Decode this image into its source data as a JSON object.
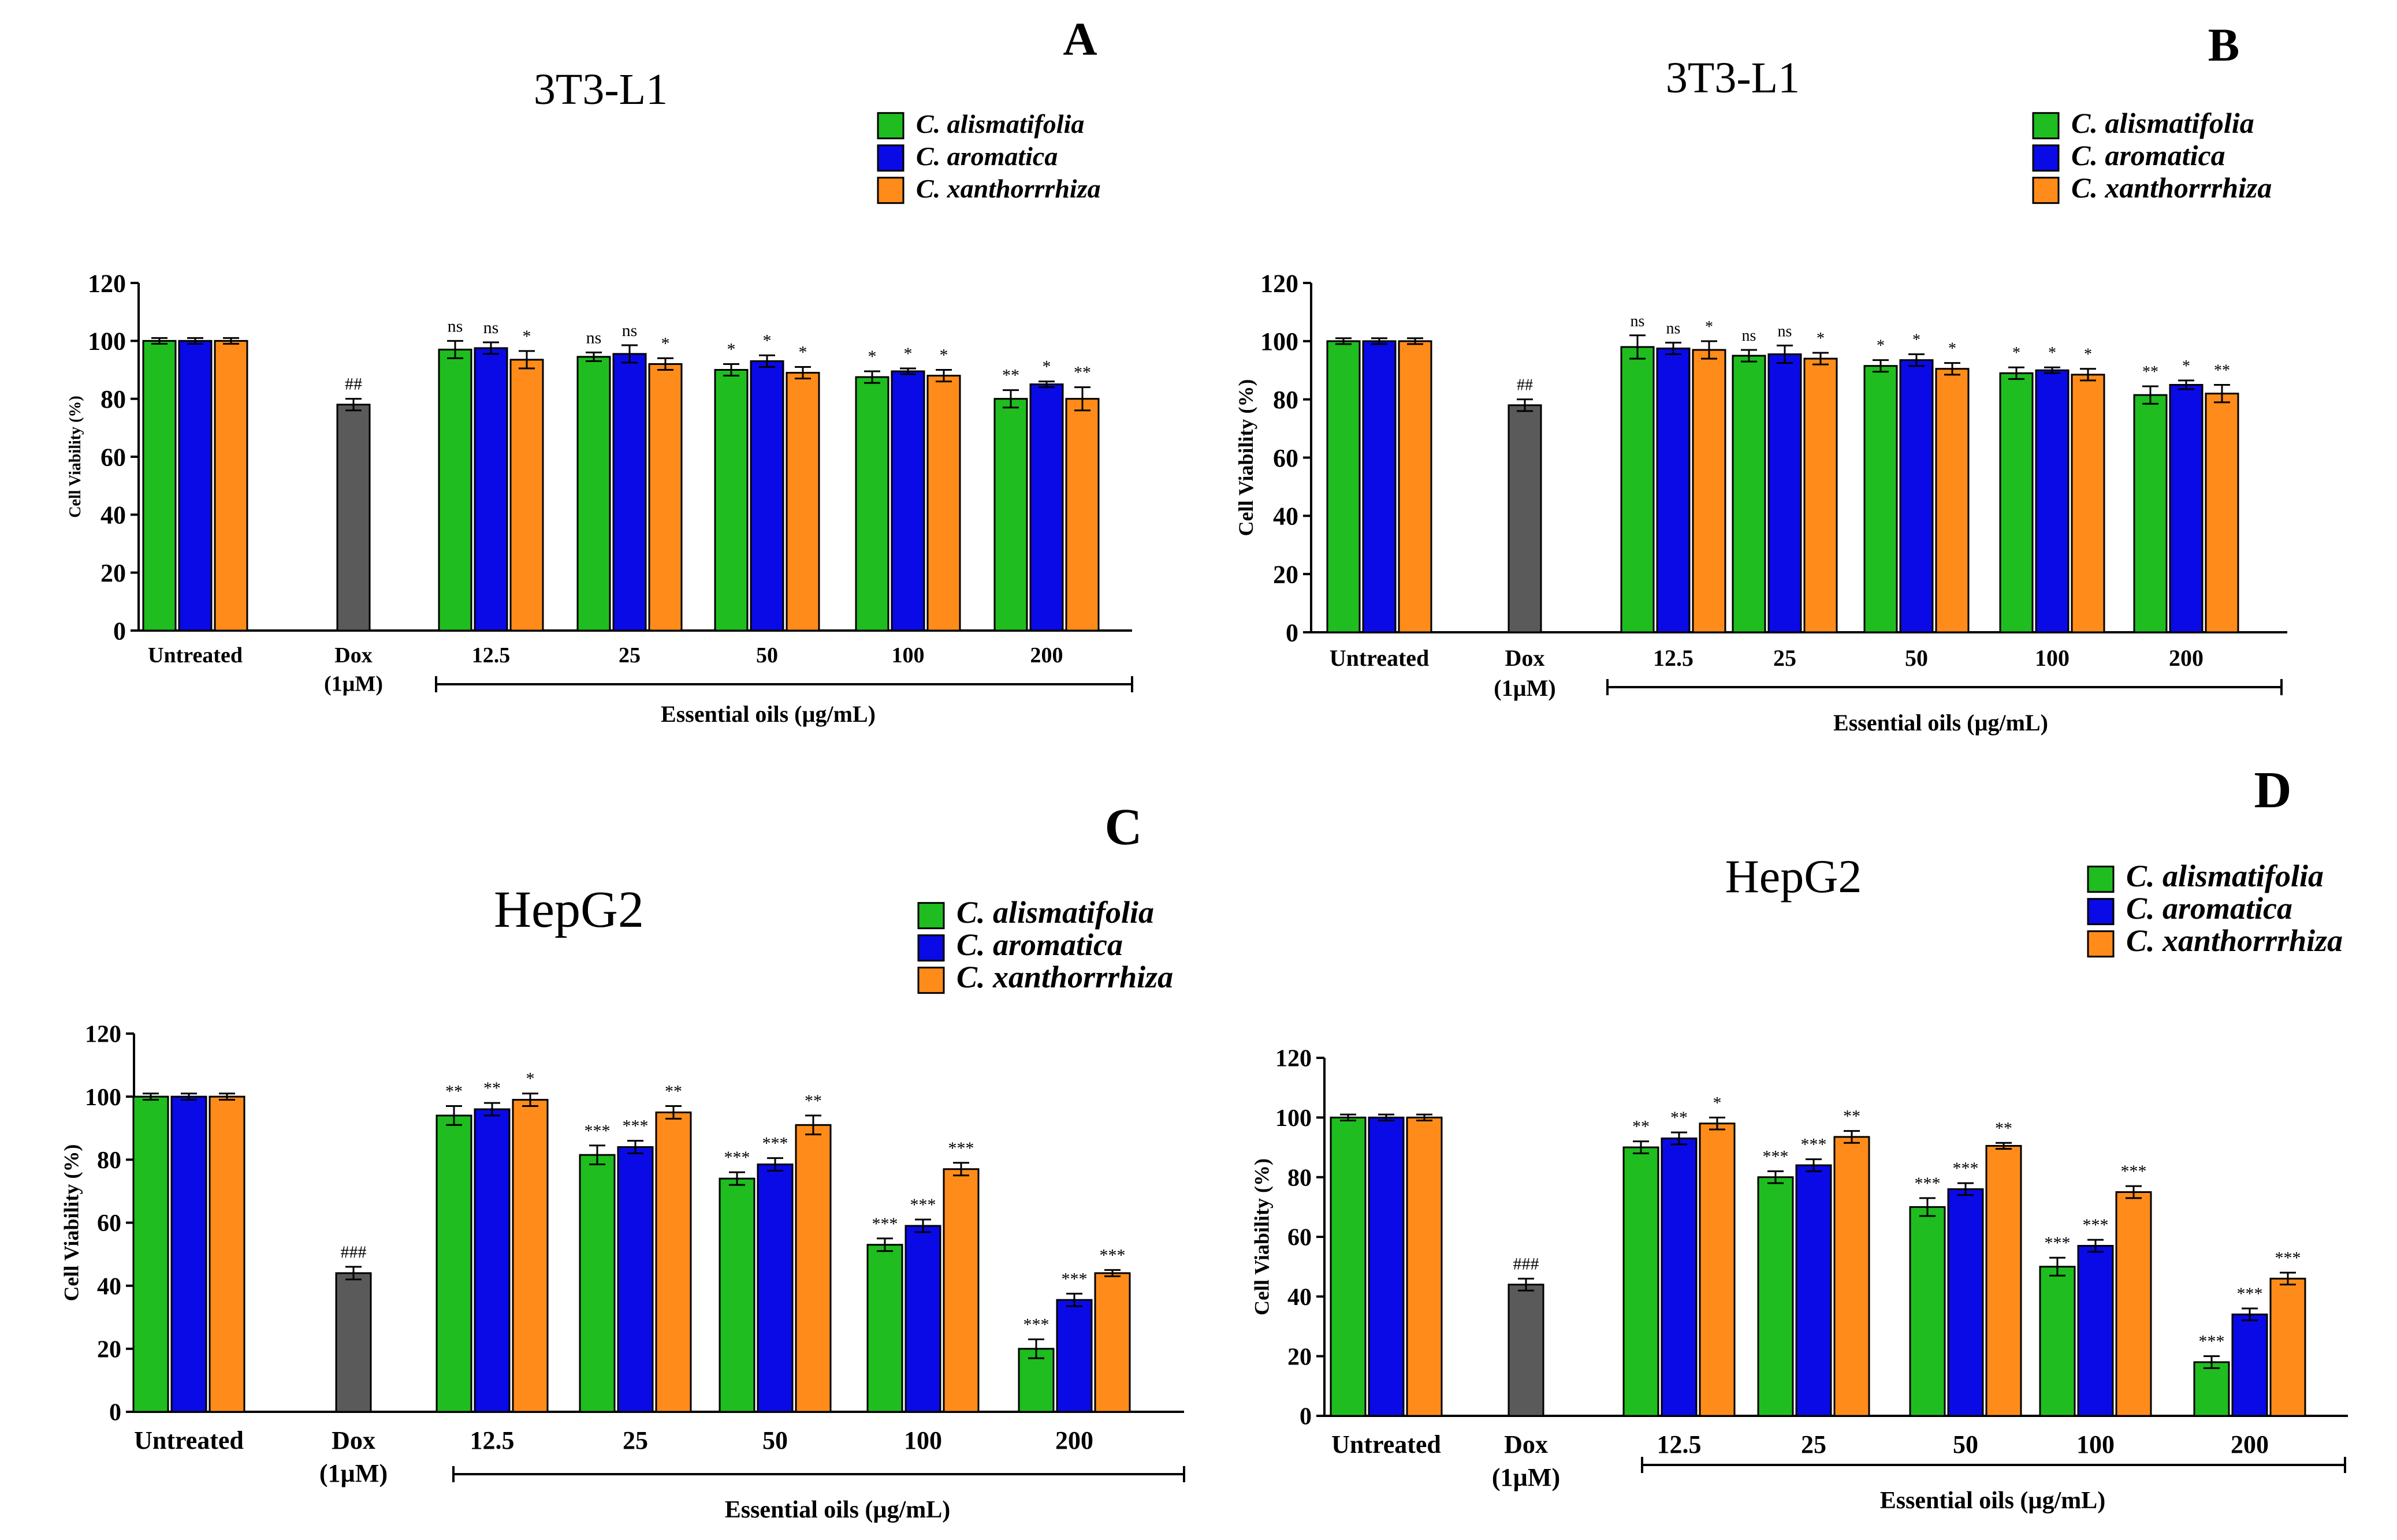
{
  "colors": {
    "series": [
      "#1fbd1f",
      "#0a0ae6",
      "#ff8c1a"
    ],
    "control": "#5a5a5a",
    "axis": "#000000"
  },
  "legend_labels": [
    "C. alismatifolia",
    "C. aromatica",
    "C. xanthorrrhiza"
  ],
  "chart_data": [
    {
      "type": "bar",
      "panel": "A",
      "title": "3T3-L1",
      "ylabel": "Cell Viability (%)",
      "xlabel": "Essential oils (µg/mL)",
      "ylim": [
        0,
        120
      ],
      "yticks": [
        "0",
        "20",
        "40",
        "60",
        "80",
        "100",
        "120"
      ],
      "legend": "top-right",
      "control_groups": [
        {
          "label": "Untreated",
          "values": [
            100,
            100,
            100
          ],
          "errors": [
            1,
            1,
            1
          ],
          "sig": [
            "",
            "",
            ""
          ]
        },
        {
          "label": "Dox",
          "sublabel": "(1µM)",
          "value": 78,
          "error": 2,
          "sig": "##"
        }
      ],
      "categories": [
        "12.5",
        "25",
        "50",
        "100",
        "200"
      ],
      "series": [
        {
          "name": "C. alismatifolia",
          "values": [
            97,
            94.5,
            90,
            87.5,
            80
          ],
          "errors": [
            3,
            1.5,
            2,
            2,
            3
          ],
          "sig": [
            "ns",
            "ns",
            "*",
            "*",
            "**"
          ]
        },
        {
          "name": "C. aromatica",
          "values": [
            97.5,
            95.5,
            93,
            89.5,
            85
          ],
          "errors": [
            2,
            3,
            2,
            1,
            1
          ],
          "sig": [
            "ns",
            "ns",
            "*",
            "*",
            "*"
          ]
        },
        {
          "name": "C. xanthorrrhiza",
          "values": [
            93.5,
            92,
            89,
            88,
            80
          ],
          "errors": [
            3,
            2,
            2,
            2,
            4
          ],
          "sig": [
            "*",
            "*",
            "*",
            "*",
            "**"
          ]
        }
      ]
    },
    {
      "type": "bar",
      "panel": "B",
      "title": "3T3-L1",
      "ylabel": "Cell Viability (%)",
      "xlabel": "Essential oils (µg/mL)",
      "ylim": [
        0,
        120
      ],
      "yticks": [
        "0",
        "20",
        "40",
        "60",
        "80",
        "100",
        "120"
      ],
      "legend": "top-right",
      "control_groups": [
        {
          "label": "Untreated",
          "values": [
            100,
            100,
            100
          ],
          "errors": [
            1,
            1,
            1
          ],
          "sig": [
            "",
            "",
            ""
          ]
        },
        {
          "label": "Dox",
          "sublabel": "(1µM)",
          "value": 78,
          "error": 2,
          "sig": "##"
        }
      ],
      "categories": [
        "12.5",
        "25",
        "50",
        "100",
        "200"
      ],
      "series": [
        {
          "name": "C. alismatifolia",
          "values": [
            98,
            95,
            91.5,
            89,
            81.5
          ],
          "errors": [
            4,
            2,
            2,
            2,
            3
          ],
          "sig": [
            "ns",
            "ns",
            "*",
            "*",
            "**"
          ]
        },
        {
          "name": "C. aromatica",
          "values": [
            97.5,
            95.5,
            93.5,
            90,
            85
          ],
          "errors": [
            2,
            3,
            2,
            1,
            1.5
          ],
          "sig": [
            "ns",
            "ns",
            "*",
            "*",
            "*"
          ]
        },
        {
          "name": "C. xanthorrrhiza",
          "values": [
            97,
            94,
            90.5,
            88.5,
            82
          ],
          "errors": [
            3,
            2,
            2,
            2,
            3
          ],
          "sig": [
            "*",
            "*",
            "*",
            "*",
            "**"
          ]
        }
      ]
    },
    {
      "type": "bar",
      "panel": "C",
      "title": "HepG2",
      "ylabel": "Cell Viability (%)",
      "xlabel": "Essential oils (µg/mL)",
      "ylim": [
        0,
        120
      ],
      "yticks": [
        "0",
        "20",
        "40",
        "60",
        "80",
        "100",
        "120"
      ],
      "legend": "top-right",
      "control_groups": [
        {
          "label": "Untreated",
          "values": [
            100,
            100,
            100
          ],
          "errors": [
            1,
            1,
            1
          ],
          "sig": [
            "",
            "",
            ""
          ]
        },
        {
          "label": "Dox",
          "sublabel": "(1µM)",
          "value": 44,
          "error": 2,
          "sig": "###"
        }
      ],
      "categories": [
        "12.5",
        "25",
        "50",
        "100",
        "200"
      ],
      "series": [
        {
          "name": "C. alismatifolia",
          "values": [
            94,
            81.5,
            74,
            53,
            20
          ],
          "errors": [
            3,
            3,
            2,
            2,
            3
          ],
          "sig": [
            "**",
            "***",
            "***",
            "***",
            "***"
          ]
        },
        {
          "name": "C. aromatica",
          "values": [
            96,
            84,
            78.5,
            59,
            35.5
          ],
          "errors": [
            2,
            2,
            2,
            2,
            2
          ],
          "sig": [
            "**",
            "***",
            "***",
            "***",
            "***"
          ]
        },
        {
          "name": "C. xanthorrrhiza",
          "values": [
            99,
            95,
            91,
            77,
            44
          ],
          "errors": [
            2,
            2,
            3,
            2,
            1
          ],
          "sig": [
            "*",
            "**",
            "**",
            "***",
            "***"
          ]
        }
      ]
    },
    {
      "type": "bar",
      "panel": "D",
      "title": "HepG2",
      "ylabel": "Cell Viability (%)",
      "xlabel": "Essential oils (µg/mL)",
      "ylim": [
        0,
        120
      ],
      "yticks": [
        "0",
        "20",
        "40",
        "60",
        "80",
        "100",
        "120"
      ],
      "legend": "top-right",
      "control_groups": [
        {
          "label": "Untreated",
          "values": [
            100,
            100,
            100
          ],
          "errors": [
            1,
            1,
            1
          ],
          "sig": [
            "",
            "",
            ""
          ]
        },
        {
          "label": "Dox",
          "sublabel": "(1µM)",
          "value": 44,
          "error": 2,
          "sig": "###"
        }
      ],
      "categories": [
        "12.5",
        "25",
        "50",
        "100",
        "200"
      ],
      "series": [
        {
          "name": "C. alismatifolia",
          "values": [
            90,
            80,
            70,
            50,
            18
          ],
          "errors": [
            2,
            2,
            3,
            3,
            2
          ],
          "sig": [
            "**",
            "***",
            "***",
            "***",
            "***"
          ]
        },
        {
          "name": "C. aromatica",
          "values": [
            93,
            84,
            76,
            57,
            34
          ],
          "errors": [
            2,
            2,
            2,
            2,
            2
          ],
          "sig": [
            "**",
            "***",
            "***",
            "***",
            "***"
          ]
        },
        {
          "name": "C. xanthorrrhiza",
          "values": [
            98,
            93.5,
            90.5,
            75,
            46
          ],
          "errors": [
            2,
            2,
            1,
            2,
            2
          ],
          "sig": [
            "*",
            "**",
            "**",
            "***",
            "***"
          ]
        }
      ]
    }
  ]
}
